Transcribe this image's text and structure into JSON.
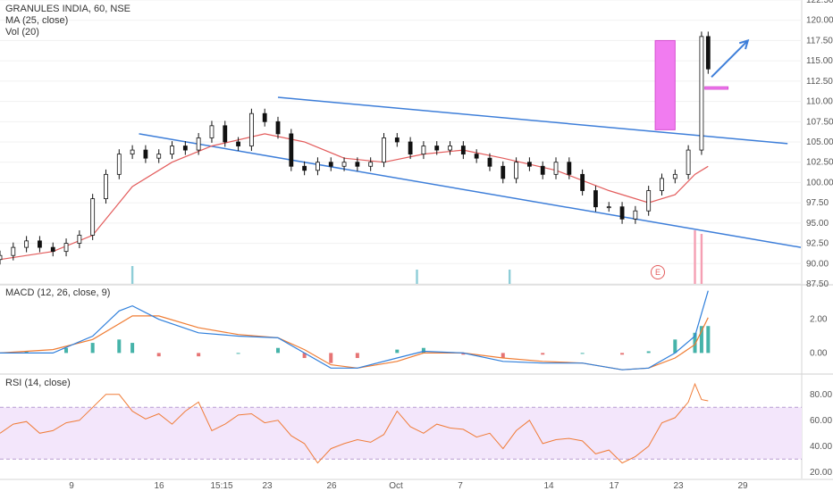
{
  "legend": {
    "title": "GRANULES INDIA, 60, NSE",
    "ma": "MA (25, close)",
    "vol": "Vol (20)",
    "macd": "MACD (12, 26, close, 9)",
    "rsi": "RSI (14, close)"
  },
  "earnings_marker": "E",
  "colors": {
    "up": "#26a69a",
    "down": "#111111",
    "ma": "#e35c5c",
    "trendline": "#3d7ed9",
    "highlight": "#f17cf0",
    "macd_line": "#2f7fdb",
    "signal_line": "#ef7c33",
    "rsi_line": "#f07c38",
    "rsi_band": "#f3e6fb"
  },
  "chart_data": [
    {
      "type": "candlestick",
      "title": "GRANULES INDIA, 60, NSE",
      "x_ticks": [
        "9",
        "16",
        "15:15",
        "23",
        "26",
        "Oct",
        "7",
        "14",
        "17",
        "23",
        "29"
      ],
      "ylim": [
        87.5,
        122.5
      ],
      "y_ticks": [
        87.5,
        90.0,
        92.5,
        95.0,
        97.5,
        100.0,
        102.5,
        105.0,
        107.5,
        110.0,
        112.5,
        115.0,
        117.5,
        120.0,
        122.5
      ],
      "close_series": [
        {
          "x": 0,
          "y": 91.0
        },
        {
          "x": 2,
          "y": 92.0
        },
        {
          "x": 4,
          "y": 92.8
        },
        {
          "x": 6,
          "y": 92.0
        },
        {
          "x": 8,
          "y": 91.5
        },
        {
          "x": 10,
          "y": 92.5
        },
        {
          "x": 12,
          "y": 93.5
        },
        {
          "x": 14,
          "y": 98.0
        },
        {
          "x": 16,
          "y": 101.0
        },
        {
          "x": 18,
          "y": 103.5
        },
        {
          "x": 20,
          "y": 104.0
        },
        {
          "x": 22,
          "y": 103.0
        },
        {
          "x": 24,
          "y": 103.5
        },
        {
          "x": 26,
          "y": 104.5
        },
        {
          "x": 28,
          "y": 104.0
        },
        {
          "x": 30,
          "y": 105.5
        },
        {
          "x": 32,
          "y": 107.0
        },
        {
          "x": 34,
          "y": 105.0
        },
        {
          "x": 36,
          "y": 104.5
        },
        {
          "x": 38,
          "y": 108.5
        },
        {
          "x": 40,
          "y": 107.5
        },
        {
          "x": 42,
          "y": 106.0
        },
        {
          "x": 44,
          "y": 102.0
        },
        {
          "x": 46,
          "y": 101.5
        },
        {
          "x": 48,
          "y": 102.5
        },
        {
          "x": 50,
          "y": 102.0
        },
        {
          "x": 52,
          "y": 102.5
        },
        {
          "x": 54,
          "y": 102.0
        },
        {
          "x": 56,
          "y": 102.5
        },
        {
          "x": 58,
          "y": 105.5
        },
        {
          "x": 60,
          "y": 105.0
        },
        {
          "x": 62,
          "y": 103.5
        },
        {
          "x": 64,
          "y": 104.5
        },
        {
          "x": 66,
          "y": 104.0
        },
        {
          "x": 68,
          "y": 104.5
        },
        {
          "x": 70,
          "y": 103.5
        },
        {
          "x": 72,
          "y": 103.0
        },
        {
          "x": 74,
          "y": 102.0
        },
        {
          "x": 76,
          "y": 100.5
        },
        {
          "x": 78,
          "y": 102.5
        },
        {
          "x": 80,
          "y": 102.0
        },
        {
          "x": 82,
          "y": 101.0
        },
        {
          "x": 84,
          "y": 102.5
        },
        {
          "x": 86,
          "y": 101.0
        },
        {
          "x": 88,
          "y": 99.0
        },
        {
          "x": 90,
          "y": 97.0
        },
        {
          "x": 92,
          "y": 97.0
        },
        {
          "x": 94,
          "y": 95.5
        },
        {
          "x": 96,
          "y": 96.5
        },
        {
          "x": 98,
          "y": 99.0
        },
        {
          "x": 100,
          "y": 100.5
        },
        {
          "x": 102,
          "y": 101.0
        },
        {
          "x": 104,
          "y": 104.0
        },
        {
          "x": 106,
          "y": 118.0
        },
        {
          "x": 107,
          "y": 114.0
        }
      ],
      "ma_series": [
        {
          "x": 0,
          "y": 90.5
        },
        {
          "x": 8,
          "y": 91.5
        },
        {
          "x": 14,
          "y": 93.5
        },
        {
          "x": 20,
          "y": 99.5
        },
        {
          "x": 26,
          "y": 102.5
        },
        {
          "x": 32,
          "y": 104.5
        },
        {
          "x": 40,
          "y": 106.0
        },
        {
          "x": 46,
          "y": 105.0
        },
        {
          "x": 52,
          "y": 103.0
        },
        {
          "x": 58,
          "y": 102.5
        },
        {
          "x": 64,
          "y": 103.5
        },
        {
          "x": 70,
          "y": 104.0
        },
        {
          "x": 76,
          "y": 103.0
        },
        {
          "x": 84,
          "y": 101.5
        },
        {
          "x": 92,
          "y": 99.0
        },
        {
          "x": 98,
          "y": 97.5
        },
        {
          "x": 102,
          "y": 98.5
        },
        {
          "x": 105,
          "y": 101.0
        },
        {
          "x": 107,
          "y": 102.0
        }
      ],
      "volume": [
        {
          "x": 20,
          "v": 0.25
        },
        {
          "x": 63,
          "v": 0.2
        },
        {
          "x": 77,
          "v": 0.2
        },
        {
          "x": 105,
          "v": 0.75
        },
        {
          "x": 106,
          "v": 0.7
        }
      ],
      "trendlines": [
        {
          "from": {
            "x": 21,
            "y": 106.0
          },
          "to": {
            "x": 121,
            "y": 92.0
          }
        },
        {
          "from": {
            "x": 42,
            "y": 110.5
          },
          "to": {
            "x": 119,
            "y": 104.8
          }
        }
      ],
      "highlight_box": {
        "x0": 99,
        "x1": 102,
        "y0": 106.5,
        "y1": 117.5
      },
      "small_box": {
        "x0": 106.5,
        "x1": 110,
        "y0": 111.5,
        "y1": 111.8
      },
      "arrow": {
        "from": {
          "x": 107.5,
          "y": 113.0
        },
        "to": {
          "x": 113,
          "y": 117.5
        }
      }
    },
    {
      "type": "line",
      "title": "MACD (12, 26, close, 9)",
      "ylim": [
        -1.2,
        4.0
      ],
      "y_ticks": [
        0.0,
        2.0
      ],
      "series": [
        {
          "name": "MACD",
          "values": [
            {
              "x": 0,
              "y": 0.0
            },
            {
              "x": 8,
              "y": 0.0
            },
            {
              "x": 14,
              "y": 1.0
            },
            {
              "x": 18,
              "y": 2.5
            },
            {
              "x": 20,
              "y": 2.8
            },
            {
              "x": 24,
              "y": 2.0
            },
            {
              "x": 30,
              "y": 1.2
            },
            {
              "x": 36,
              "y": 1.0
            },
            {
              "x": 42,
              "y": 0.9
            },
            {
              "x": 46,
              "y": 0.0
            },
            {
              "x": 50,
              "y": -0.9
            },
            {
              "x": 54,
              "y": -0.9
            },
            {
              "x": 60,
              "y": -0.3
            },
            {
              "x": 64,
              "y": 0.1
            },
            {
              "x": 70,
              "y": 0.0
            },
            {
              "x": 76,
              "y": -0.5
            },
            {
              "x": 82,
              "y": -0.6
            },
            {
              "x": 88,
              "y": -0.6
            },
            {
              "x": 94,
              "y": -1.0
            },
            {
              "x": 98,
              "y": -0.9
            },
            {
              "x": 102,
              "y": 0.0
            },
            {
              "x": 105,
              "y": 1.0
            },
            {
              "x": 107,
              "y": 3.7
            }
          ]
        },
        {
          "name": "Signal",
          "values": [
            {
              "x": 0,
              "y": 0.0
            },
            {
              "x": 8,
              "y": 0.2
            },
            {
              "x": 14,
              "y": 0.8
            },
            {
              "x": 20,
              "y": 2.2
            },
            {
              "x": 24,
              "y": 2.2
            },
            {
              "x": 30,
              "y": 1.5
            },
            {
              "x": 36,
              "y": 1.1
            },
            {
              "x": 42,
              "y": 0.9
            },
            {
              "x": 46,
              "y": 0.2
            },
            {
              "x": 50,
              "y": -0.7
            },
            {
              "x": 54,
              "y": -0.9
            },
            {
              "x": 60,
              "y": -0.5
            },
            {
              "x": 64,
              "y": 0.0
            },
            {
              "x": 70,
              "y": 0.0
            },
            {
              "x": 76,
              "y": -0.3
            },
            {
              "x": 82,
              "y": -0.5
            },
            {
              "x": 88,
              "y": -0.6
            },
            {
              "x": 94,
              "y": -1.0
            },
            {
              "x": 98,
              "y": -0.9
            },
            {
              "x": 102,
              "y": -0.3
            },
            {
              "x": 105,
              "y": 0.5
            },
            {
              "x": 107,
              "y": 2.1
            }
          ]
        }
      ],
      "histogram": [
        {
          "x": 4,
          "y": 0.1
        },
        {
          "x": 10,
          "y": 0.3
        },
        {
          "x": 14,
          "y": 0.6
        },
        {
          "x": 18,
          "y": 0.8
        },
        {
          "x": 20,
          "y": 0.6
        },
        {
          "x": 24,
          "y": -0.2
        },
        {
          "x": 30,
          "y": -0.2
        },
        {
          "x": 36,
          "y": 0.0
        },
        {
          "x": 42,
          "y": 0.3
        },
        {
          "x": 46,
          "y": -0.3
        },
        {
          "x": 50,
          "y": -0.6
        },
        {
          "x": 54,
          "y": -0.3
        },
        {
          "x": 60,
          "y": 0.2
        },
        {
          "x": 64,
          "y": 0.3
        },
        {
          "x": 70,
          "y": -0.1
        },
        {
          "x": 76,
          "y": -0.3
        },
        {
          "x": 82,
          "y": -0.1
        },
        {
          "x": 88,
          "y": 0.0
        },
        {
          "x": 94,
          "y": -0.1
        },
        {
          "x": 98,
          "y": 0.1
        },
        {
          "x": 102,
          "y": 0.8
        },
        {
          "x": 105,
          "y": 1.2
        },
        {
          "x": 106,
          "y": 1.6
        },
        {
          "x": 107,
          "y": 1.6
        }
      ]
    },
    {
      "type": "line",
      "title": "RSI (14, close)",
      "ylim": [
        15,
        95
      ],
      "y_ticks": [
        20.0,
        40.0,
        60.0,
        80.0
      ],
      "band": [
        30,
        70
      ],
      "values": [
        {
          "x": 0,
          "y": 50
        },
        {
          "x": 2,
          "y": 57
        },
        {
          "x": 4,
          "y": 59
        },
        {
          "x": 6,
          "y": 50
        },
        {
          "x": 8,
          "y": 52
        },
        {
          "x": 10,
          "y": 58
        },
        {
          "x": 12,
          "y": 60
        },
        {
          "x": 14,
          "y": 70
        },
        {
          "x": 16,
          "y": 80
        },
        {
          "x": 18,
          "y": 80
        },
        {
          "x": 20,
          "y": 67
        },
        {
          "x": 22,
          "y": 61
        },
        {
          "x": 24,
          "y": 65
        },
        {
          "x": 26,
          "y": 57
        },
        {
          "x": 28,
          "y": 67
        },
        {
          "x": 30,
          "y": 74
        },
        {
          "x": 32,
          "y": 52
        },
        {
          "x": 34,
          "y": 57
        },
        {
          "x": 36,
          "y": 64
        },
        {
          "x": 38,
          "y": 65
        },
        {
          "x": 40,
          "y": 58
        },
        {
          "x": 42,
          "y": 60
        },
        {
          "x": 44,
          "y": 48
        },
        {
          "x": 46,
          "y": 42
        },
        {
          "x": 48,
          "y": 27
        },
        {
          "x": 50,
          "y": 38
        },
        {
          "x": 52,
          "y": 42
        },
        {
          "x": 54,
          "y": 45
        },
        {
          "x": 56,
          "y": 43
        },
        {
          "x": 58,
          "y": 49
        },
        {
          "x": 60,
          "y": 67
        },
        {
          "x": 62,
          "y": 55
        },
        {
          "x": 64,
          "y": 50
        },
        {
          "x": 66,
          "y": 57
        },
        {
          "x": 68,
          "y": 54
        },
        {
          "x": 70,
          "y": 53
        },
        {
          "x": 72,
          "y": 47
        },
        {
          "x": 74,
          "y": 50
        },
        {
          "x": 76,
          "y": 38
        },
        {
          "x": 78,
          "y": 52
        },
        {
          "x": 80,
          "y": 60
        },
        {
          "x": 82,
          "y": 42
        },
        {
          "x": 84,
          "y": 45
        },
        {
          "x": 86,
          "y": 46
        },
        {
          "x": 88,
          "y": 44
        },
        {
          "x": 90,
          "y": 34
        },
        {
          "x": 92,
          "y": 37
        },
        {
          "x": 94,
          "y": 27
        },
        {
          "x": 96,
          "y": 32
        },
        {
          "x": 98,
          "y": 40
        },
        {
          "x": 100,
          "y": 58
        },
        {
          "x": 102,
          "y": 62
        },
        {
          "x": 104,
          "y": 74
        },
        {
          "x": 105,
          "y": 88
        },
        {
          "x": 106,
          "y": 76
        },
        {
          "x": 107,
          "y": 75
        }
      ]
    }
  ]
}
